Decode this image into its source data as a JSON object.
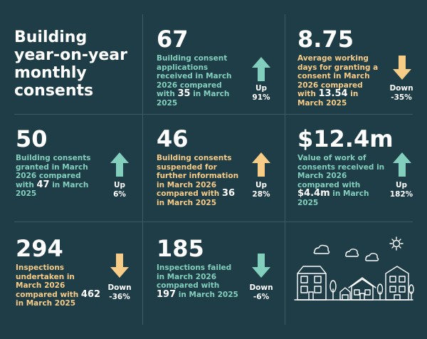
{
  "title": "Building year-on-year monthly consents",
  "colors": {
    "background": "#1f3d47",
    "up": "#83cfbd",
    "down": "#f7cc87",
    "grid": "#3e5b64"
  },
  "cards": [
    {
      "value": "67",
      "desc_pre": "Building consent applications received in March 2026 compared with ",
      "desc_hl": "35",
      "desc_post": " in March 2025",
      "desc_color": "green",
      "direction": "up",
      "arrow_color": "#83cfbd",
      "change_word": "Up",
      "change_pct": "91%"
    },
    {
      "value": "8.75",
      "desc_pre": "Average working days for granting a consent in March 2026 compared with ",
      "desc_hl": "13.54",
      "desc_post": " in March 2025",
      "desc_color": "orange",
      "direction": "down",
      "arrow_color": "#f7cc87",
      "change_word": "Down",
      "change_pct": "-35%"
    },
    {
      "value": "50",
      "desc_pre": "Building consents granted in March 2026 compared with ",
      "desc_hl": "47",
      "desc_post": " in March 2025",
      "desc_color": "green",
      "direction": "up",
      "arrow_color": "#83cfbd",
      "change_word": "Up",
      "change_pct": "6%"
    },
    {
      "value": "46",
      "desc_pre": "Building consents suspended for further information in March 2026 compared with ",
      "desc_hl": "36",
      "desc_post": " in March 2025",
      "desc_color": "orange",
      "direction": "up",
      "arrow_color": "#f7cc87",
      "change_word": "Up",
      "change_pct": "28%"
    },
    {
      "value": "$12.4m",
      "desc_pre": "Value of work of consents received in March 2026 compared with ",
      "desc_hl": "$4.4m",
      "desc_post": " in March 2025",
      "desc_color": "green",
      "direction": "up",
      "arrow_color": "#83cfbd",
      "change_word": "Up",
      "change_pct": "182%"
    },
    {
      "value": "294",
      "desc_pre": "Inspections undertaken in March 2026 compared with ",
      "desc_hl": "462",
      "desc_post": " in March 2025",
      "desc_color": "orange",
      "direction": "down",
      "arrow_color": "#f7cc87",
      "change_word": "Down",
      "change_pct": "-36%"
    },
    {
      "value": "185",
      "desc_pre": "Inspections failed in March 2026 compared with ",
      "desc_hl": "197",
      "desc_post": " in March 2025",
      "desc_color": "green",
      "direction": "down",
      "arrow_color": "#83cfbd",
      "change_word": "Down",
      "change_pct": "-6%"
    }
  ]
}
